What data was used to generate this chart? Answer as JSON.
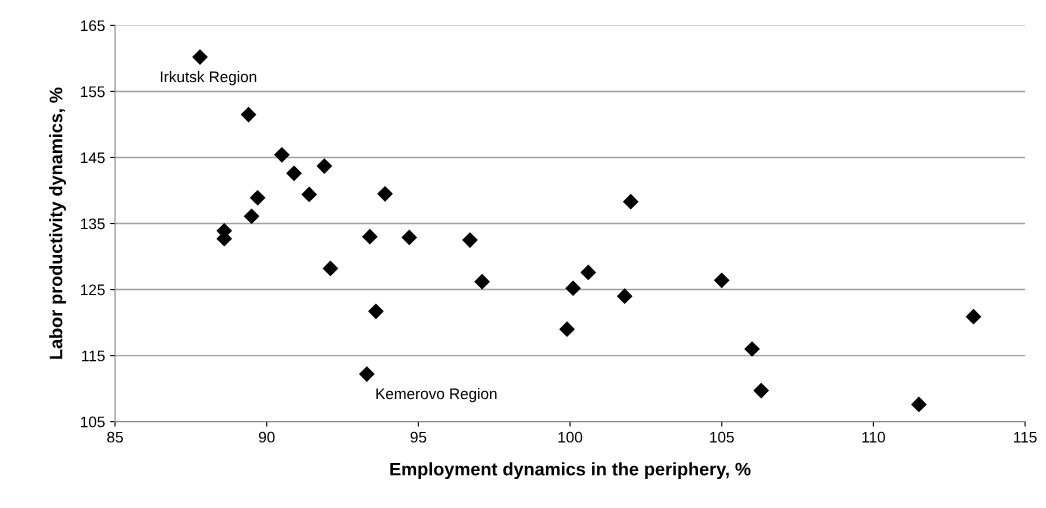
{
  "chart_data": {
    "type": "scatter",
    "xlabel": "Employment dynamics in the periphery, %",
    "ylabel": "Labor productivity dynamics, %",
    "x": [
      87.8,
      89.4,
      90.5,
      90.9,
      91.9,
      91.4,
      89.7,
      93.9,
      89.5,
      88.6,
      88.6,
      93.4,
      94.7,
      96.7,
      92.1,
      97.1,
      93.6,
      93.3,
      99.9,
      100.1,
      100.6,
      102.0,
      101.8,
      105.0,
      106.0,
      106.3,
      111.5,
      113.3
    ],
    "values": [
      160.2,
      151.5,
      145.4,
      142.6,
      143.7,
      139.4,
      138.9,
      139.5,
      136.1,
      133.9,
      132.7,
      133.0,
      132.9,
      132.5,
      128.2,
      126.2,
      121.7,
      112.2,
      119.0,
      125.2,
      127.6,
      138.3,
      124.0,
      126.4,
      116.0,
      109.7,
      107.6,
      120.9
    ],
    "color": "#000000",
    "marker": "diamond",
    "xlim": [
      85,
      115
    ],
    "xticks": [
      85,
      90,
      95,
      100,
      105,
      110,
      115
    ],
    "ylim": [
      105,
      165
    ],
    "yticks": [
      105,
      115,
      125,
      135,
      145,
      155,
      165
    ],
    "grid": "y",
    "annotations": [
      {
        "text": "Irkutsk Region",
        "x": 87.8,
        "y": 160.2
      },
      {
        "text": "Kemerovo Region",
        "x": 93.3,
        "y": 112.2
      }
    ]
  }
}
